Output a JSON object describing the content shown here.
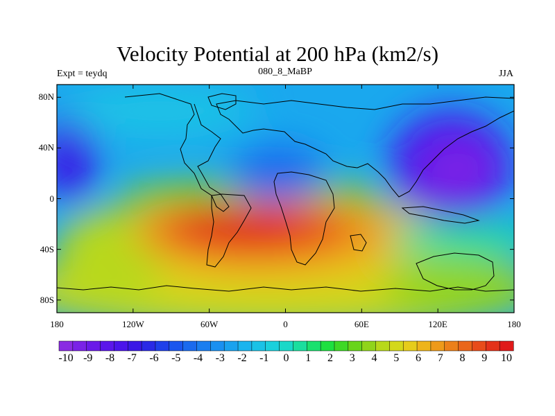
{
  "title": "Velocity Potential at 200 hPa (km2/s)",
  "subtitle_left": "Expt = teydq",
  "subtitle_center": "080_8_MaBP",
  "subtitle_right": "JJA",
  "y_ticks": [
    {
      "label": "80N",
      "lat": 80
    },
    {
      "label": "40N",
      "lat": 40
    },
    {
      "label": "0",
      "lat": 0
    },
    {
      "label": "40S",
      "lat": -40
    },
    {
      "label": "80S",
      "lat": -80
    }
  ],
  "x_ticks": [
    {
      "label": "180",
      "lon": -180
    },
    {
      "label": "120W",
      "lon": -120
    },
    {
      "label": "60W",
      "lon": -60
    },
    {
      "label": "0",
      "lon": 0
    },
    {
      "label": "60E",
      "lon": 60
    },
    {
      "label": "120E",
      "lon": 120
    },
    {
      "label": "180",
      "lon": 180
    }
  ],
  "colorbar": {
    "min": -10,
    "max": 10,
    "step": 0.5,
    "labels": [
      "-10",
      "-9",
      "-8",
      "-7",
      "-6",
      "-5",
      "-4",
      "-3",
      "-2",
      "-1",
      "0",
      "1",
      "2",
      "3",
      "4",
      "5",
      "6",
      "7",
      "8",
      "9",
      "10"
    ],
    "colors": [
      "#8a2be2",
      "#7a22e6",
      "#6a1ae8",
      "#5b16ea",
      "#4b14ea",
      "#3a18e6",
      "#2a2ae6",
      "#1f40ea",
      "#1a56ee",
      "#1a6aee",
      "#1a7ef0",
      "#1a90f0",
      "#1aa2ee",
      "#1ab4ee",
      "#1ac2e6",
      "#1ad0dc",
      "#1ad8c8",
      "#1ade9e",
      "#1ae06e",
      "#1ee040",
      "#3ed826",
      "#68d41a",
      "#90d41a",
      "#b8d81a",
      "#d4d81a",
      "#e6cc1a",
      "#eeb41a",
      "#ee9a1a",
      "#ec801a",
      "#ea661a",
      "#e84c1a",
      "#e4321a",
      "#e01a1a"
    ]
  },
  "field_centers": [
    {
      "lon": -25,
      "lat": -25,
      "value": 10,
      "r_lon": 55,
      "r_lat": 18
    },
    {
      "lon": 20,
      "lat": -35,
      "value": 6,
      "r_lon": 50,
      "r_lat": 20
    },
    {
      "lon": 130,
      "lat": 20,
      "value": -10,
      "r_lon": 40,
      "r_lat": 35
    },
    {
      "lon": -175,
      "lat": 25,
      "value": -7,
      "r_lon": 18,
      "r_lat": 30
    },
    {
      "lon": -20,
      "lat": 15,
      "value": -2,
      "r_lon": 40,
      "r_lat": 20
    }
  ]
}
